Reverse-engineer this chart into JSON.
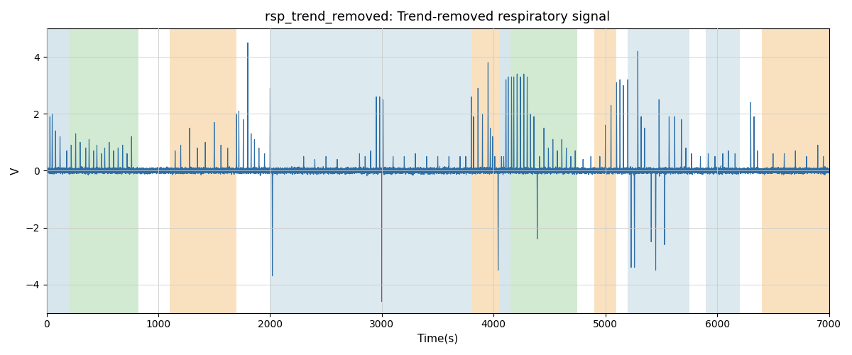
{
  "title": "rsp_trend_removed: Trend-removed respiratory signal",
  "xlabel": "Time(s)",
  "ylabel": "V",
  "xlim": [
    0,
    7000
  ],
  "ylim": [
    -5,
    5
  ],
  "line_color": "#2c6ea6",
  "line_width": 0.8,
  "bg_color": "#ffffff",
  "bands": [
    {
      "xmin": 0,
      "xmax": 200,
      "color": "#a8c8d8",
      "alpha": 0.45
    },
    {
      "xmin": 200,
      "xmax": 820,
      "color": "#90c890",
      "alpha": 0.4
    },
    {
      "xmin": 1100,
      "xmax": 1700,
      "color": "#f5c580",
      "alpha": 0.5
    },
    {
      "xmin": 2000,
      "xmax": 3800,
      "color": "#a8c8d8",
      "alpha": 0.4
    },
    {
      "xmin": 3800,
      "xmax": 4050,
      "color": "#f5c580",
      "alpha": 0.5
    },
    {
      "xmin": 4050,
      "xmax": 4150,
      "color": "#a8c8d8",
      "alpha": 0.45
    },
    {
      "xmin": 4150,
      "xmax": 4750,
      "color": "#90c890",
      "alpha": 0.4
    },
    {
      "xmin": 4900,
      "xmax": 5100,
      "color": "#f5c580",
      "alpha": 0.5
    },
    {
      "xmin": 5200,
      "xmax": 5750,
      "color": "#a8c8d8",
      "alpha": 0.4
    },
    {
      "xmin": 5900,
      "xmax": 6200,
      "color": "#a8c8d8",
      "alpha": 0.4
    },
    {
      "xmin": 6400,
      "xmax": 7000,
      "color": "#f5c580",
      "alpha": 0.5
    }
  ],
  "spikes": [
    [
      30,
      1.9
    ],
    [
      50,
      2.0
    ],
    [
      80,
      1.4
    ],
    [
      120,
      1.2
    ],
    [
      180,
      0.7
    ],
    [
      220,
      0.9
    ],
    [
      260,
      1.3
    ],
    [
      300,
      1.0
    ],
    [
      350,
      0.8
    ],
    [
      380,
      1.1
    ],
    [
      420,
      0.7
    ],
    [
      450,
      0.9
    ],
    [
      490,
      0.6
    ],
    [
      520,
      0.8
    ],
    [
      560,
      1.0
    ],
    [
      600,
      0.7
    ],
    [
      640,
      0.8
    ],
    [
      680,
      0.9
    ],
    [
      720,
      0.6
    ],
    [
      760,
      1.2
    ],
    [
      1150,
      0.7
    ],
    [
      1200,
      0.9
    ],
    [
      1280,
      1.5
    ],
    [
      1350,
      0.8
    ],
    [
      1420,
      1.0
    ],
    [
      1500,
      1.7
    ],
    [
      1560,
      0.9
    ],
    [
      1620,
      0.8
    ],
    [
      1700,
      2.0
    ],
    [
      1720,
      2.1
    ],
    [
      1760,
      1.8
    ],
    [
      1800,
      4.5
    ],
    [
      1830,
      1.3
    ],
    [
      1860,
      1.1
    ],
    [
      1900,
      0.8
    ],
    [
      1950,
      0.6
    ],
    [
      2000,
      2.9
    ],
    [
      2020,
      -3.7
    ],
    [
      2300,
      0.5
    ],
    [
      2400,
      0.4
    ],
    [
      2500,
      0.5
    ],
    [
      2600,
      0.4
    ],
    [
      2800,
      0.6
    ],
    [
      2850,
      0.5
    ],
    [
      2900,
      0.7
    ],
    [
      2950,
      2.6
    ],
    [
      2980,
      2.6
    ],
    [
      3000,
      -4.6
    ],
    [
      3010,
      2.5
    ],
    [
      3100,
      0.5
    ],
    [
      3200,
      0.5
    ],
    [
      3300,
      0.6
    ],
    [
      3400,
      0.5
    ],
    [
      3500,
      0.5
    ],
    [
      3600,
      0.5
    ],
    [
      3700,
      0.5
    ],
    [
      3750,
      0.5
    ],
    [
      3800,
      2.6
    ],
    [
      3820,
      1.9
    ],
    [
      3860,
      2.9
    ],
    [
      3900,
      2.0
    ],
    [
      3950,
      3.8
    ],
    [
      3970,
      1.5
    ],
    [
      3990,
      1.2
    ],
    [
      4010,
      0.5
    ],
    [
      4040,
      -3.5
    ],
    [
      4070,
      0.5
    ],
    [
      4090,
      0.5
    ],
    [
      4110,
      3.2
    ],
    [
      4130,
      3.3
    ],
    [
      4160,
      3.3
    ],
    [
      4180,
      3.3
    ],
    [
      4210,
      3.4
    ],
    [
      4240,
      3.3
    ],
    [
      4270,
      3.4
    ],
    [
      4300,
      3.3
    ],
    [
      4330,
      2.0
    ],
    [
      4360,
      1.9
    ],
    [
      4390,
      -2.4
    ],
    [
      4410,
      0.5
    ],
    [
      4450,
      1.5
    ],
    [
      4490,
      0.8
    ],
    [
      4530,
      1.1
    ],
    [
      4570,
      0.7
    ],
    [
      4610,
      1.1
    ],
    [
      4650,
      0.8
    ],
    [
      4690,
      0.5
    ],
    [
      4730,
      0.7
    ],
    [
      4800,
      0.4
    ],
    [
      4870,
      0.5
    ],
    [
      4950,
      0.5
    ],
    [
      5000,
      1.6
    ],
    [
      5050,
      2.3
    ],
    [
      5100,
      3.1
    ],
    [
      5130,
      3.2
    ],
    [
      5160,
      3.0
    ],
    [
      5200,
      3.2
    ],
    [
      5230,
      -3.4
    ],
    [
      5260,
      -3.4
    ],
    [
      5290,
      4.2
    ],
    [
      5320,
      1.9
    ],
    [
      5350,
      1.5
    ],
    [
      5410,
      -2.5
    ],
    [
      5450,
      -3.5
    ],
    [
      5480,
      2.5
    ],
    [
      5530,
      -2.6
    ],
    [
      5570,
      1.9
    ],
    [
      5620,
      1.9
    ],
    [
      5680,
      1.8
    ],
    [
      5720,
      0.8
    ],
    [
      5770,
      0.6
    ],
    [
      5850,
      0.5
    ],
    [
      5920,
      0.6
    ],
    [
      5980,
      0.5
    ],
    [
      6050,
      0.6
    ],
    [
      6100,
      0.7
    ],
    [
      6160,
      0.6
    ],
    [
      6300,
      2.4
    ],
    [
      6330,
      1.9
    ],
    [
      6360,
      0.7
    ],
    [
      6500,
      0.6
    ],
    [
      6600,
      0.6
    ],
    [
      6700,
      0.7
    ],
    [
      6800,
      0.5
    ],
    [
      6900,
      0.9
    ],
    [
      6950,
      0.5
    ]
  ],
  "noise_level": 0.04,
  "seed": 0
}
